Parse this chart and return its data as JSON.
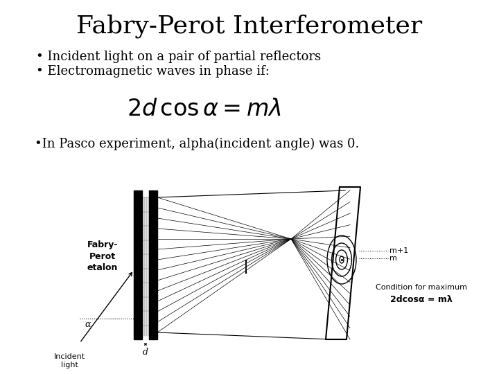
{
  "title": "Fabry-Perot Interferometer",
  "bullet1": "Incident light on a pair of partial reflectors",
  "bullet2": "Electromagnetic waves in phase if:",
  "formula": "$2d\\,\\cos\\alpha = m\\lambda$",
  "bullet3": "In Pasco experiment, alpha(incident angle) was 0.",
  "label_etalon": "Fabry-\nPerot\netalon",
  "label_incident": "Incident\nlight",
  "label_d": "d",
  "label_alpha": "α",
  "label_m1": "m+1",
  "label_m": "m",
  "label_condition": "Condition for maximum",
  "label_formula2": "2dcosα = mλ",
  "bg_color": "#ffffff",
  "text_color": "#000000",
  "title_fontsize": 26,
  "body_fontsize": 13,
  "formula_fontsize": 24,
  "diagram_fontsize": 8
}
